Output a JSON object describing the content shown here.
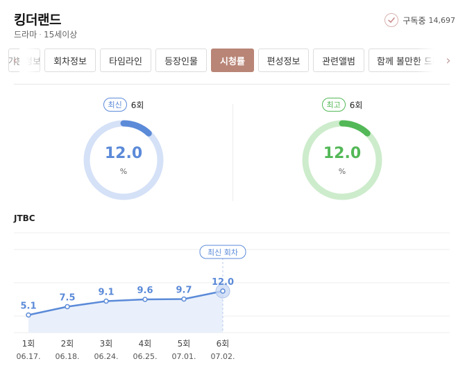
{
  "header": {
    "title": "킹더랜드",
    "genre": "드라마",
    "rating": "15세이상",
    "subscribe_label": "구독중",
    "subscribe_count": "14,697"
  },
  "tabs": [
    {
      "label": "기본정보",
      "active": false
    },
    {
      "label": "회차정보",
      "active": false
    },
    {
      "label": "타임라인",
      "active": false
    },
    {
      "label": "등장인물",
      "active": false
    },
    {
      "label": "시청률",
      "active": true
    },
    {
      "label": "편성정보",
      "active": false
    },
    {
      "label": "관련앨범",
      "active": false
    },
    {
      "label": "함께 볼만한 드라마",
      "active": false
    }
  ],
  "stats": {
    "latest": {
      "badge": "최신",
      "episode": "6회",
      "value": "12.0",
      "unit": "%",
      "color": "#5b8ad8",
      "track": "#d5e1f7"
    },
    "best": {
      "badge": "최고",
      "episode": "6회",
      "value": "12.0",
      "unit": "%",
      "color": "#53b857",
      "track": "#cdeccc"
    }
  },
  "network": "JTBC",
  "chart_data": {
    "type": "area",
    "categories": [
      "1회",
      "2회",
      "3회",
      "4회",
      "5회",
      "6회"
    ],
    "dates": [
      "06.17.",
      "06.18.",
      "06.24.",
      "06.25.",
      "07.01.",
      "07.02."
    ],
    "series": [
      {
        "values": [
          5.1,
          7.5,
          9.1,
          9.6,
          9.7,
          12.0
        ]
      }
    ],
    "value_labels": [
      "5.1",
      "7.5",
      "9.1",
      "9.6",
      "9.7",
      "12.0"
    ],
    "annotation": "최신 회차",
    "ylim": [
      0,
      30
    ],
    "grid": true,
    "color": "#5b8ad8"
  }
}
